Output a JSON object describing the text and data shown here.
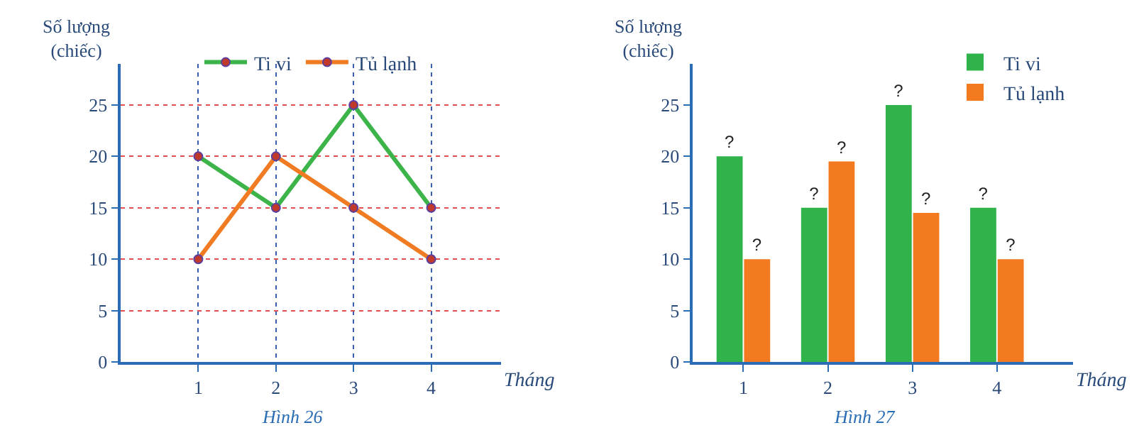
{
  "chart_data": [
    {
      "type": "line",
      "ylabel": "Số lượng\n(chiếc)",
      "xlabel": "Tháng",
      "x": [
        1,
        2,
        3,
        4
      ],
      "xlim": [
        0,
        4.9
      ],
      "xticks": [
        1,
        2,
        3,
        4
      ],
      "ylim": [
        0,
        29
      ],
      "yticks": [
        0,
        5,
        10,
        15,
        20,
        25
      ],
      "grid": true,
      "legend": "top",
      "marker": "circle",
      "annotations": [
        "Hình 26"
      ],
      "series": [
        {
          "name": "Ti vi",
          "color": "#3cb44a",
          "values": [
            20,
            15,
            25,
            15
          ]
        },
        {
          "name": "Tủ lạnh",
          "color": "#f07b22",
          "values": [
            10,
            20,
            15,
            10
          ]
        }
      ]
    },
    {
      "type": "bar",
      "ylabel": "Số lượng\n(chiếc)",
      "xlabel": "Tháng",
      "categories": [
        "1",
        "2",
        "3",
        "4"
      ],
      "ylim": [
        0,
        29
      ],
      "yticks": [
        0,
        5,
        10,
        15,
        20,
        25
      ],
      "legend": "top right",
      "annotations": [
        "Hình 27"
      ],
      "series": [
        {
          "name": "Ti vi",
          "color": "#2fb34a",
          "values": [
            20,
            15,
            25,
            15
          ],
          "value_labels": [
            "?",
            "?",
            "?",
            "?"
          ]
        },
        {
          "name": "Tủ lạnh",
          "color": "#f47a20",
          "values": [
            10,
            19.5,
            14.5,
            10
          ],
          "value_labels": [
            "?",
            "?",
            "?",
            "?"
          ]
        }
      ]
    }
  ]
}
